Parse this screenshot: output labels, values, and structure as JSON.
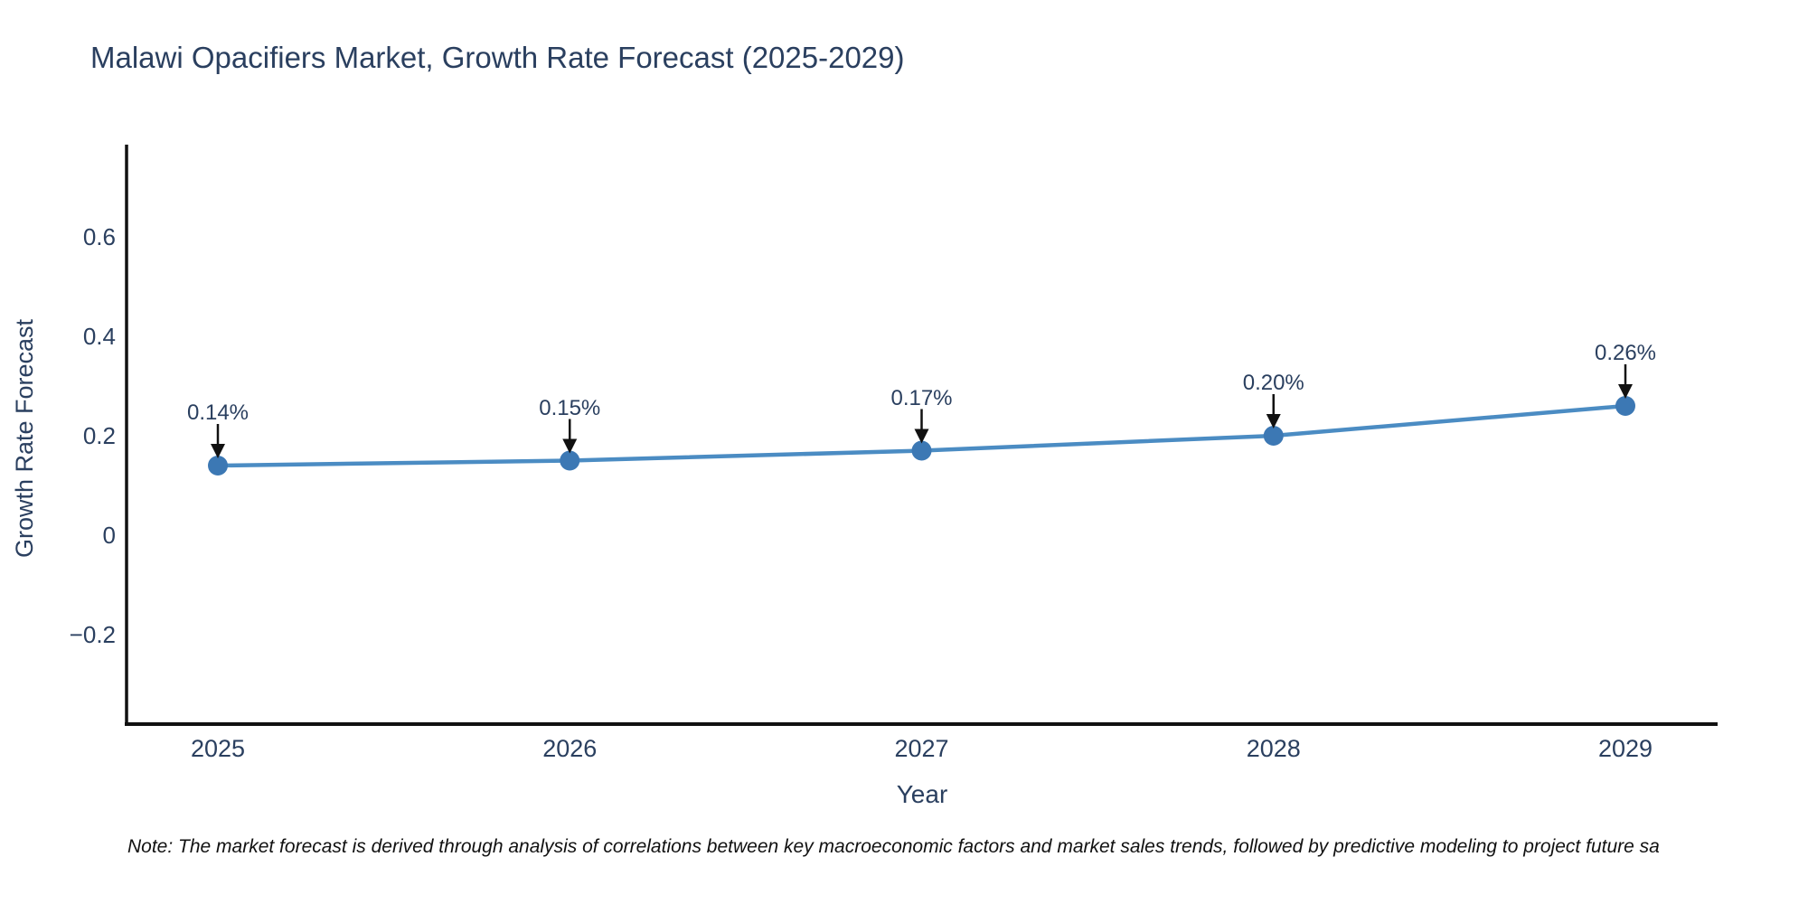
{
  "title": "Malawi Opacifiers Market, Growth Rate Forecast (2025-2029)",
  "note": "Note: The market forecast is derived through analysis of correlations between key macroeconomic factors and market sales trends, followed by predictive modeling to project future sa",
  "colors": {
    "line": "#4b8cc3",
    "marker": "#3c78b4",
    "axis": "#111111",
    "arrow": "#111111",
    "text": "#2a3f5f"
  },
  "chart_data": {
    "type": "line",
    "title": "Malawi Opacifiers Market, Growth Rate Forecast (2025-2029)",
    "xlabel": "Year",
    "ylabel": "Growth Rate Forecast",
    "categories": [
      "2025",
      "2026",
      "2027",
      "2028",
      "2029"
    ],
    "values": [
      0.14,
      0.15,
      0.17,
      0.2,
      0.26
    ],
    "point_labels": [
      "0.14%",
      "0.15%",
      "0.17%",
      "0.20%",
      "0.26%"
    ],
    "series_name": "Growth Rate Forecast",
    "ytick_labels": [
      "0.6",
      "0.4",
      "0.2",
      "0",
      "−0.2"
    ],
    "ytick_values": [
      0.6,
      0.4,
      0.2,
      0,
      -0.2
    ],
    "ylim": [
      -0.38,
      0.79
    ],
    "grid": false,
    "legend_position": "none",
    "marker": "circle",
    "annotations_have_arrows": true
  }
}
